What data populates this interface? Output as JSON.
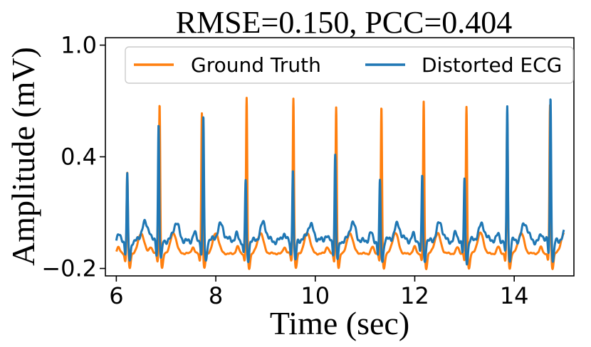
{
  "chart_data": {
    "type": "line",
    "title": "RMSE=0.150, PCC=0.404",
    "xlabel": "Time (sec)",
    "ylabel": "Amplitude (mV)",
    "xlim": [
      5.78,
      15.2
    ],
    "ylim": [
      -0.24,
      1.04
    ],
    "xticks": [
      6,
      8,
      10,
      12,
      14
    ],
    "xtick_labels": [
      "6",
      "8",
      "10",
      "12",
      "14"
    ],
    "yticks": [
      -0.2,
      0.4,
      1.0
    ],
    "ytick_labels": [
      "−0.2",
      "0.4",
      "1.0"
    ],
    "grid": false,
    "legend": {
      "placement": "top",
      "ncol": 2
    },
    "series": [
      {
        "name": "Ground Truth",
        "color": "#ff7f0e",
        "beats": [
          6.22,
          6.87,
          7.72,
          8.62,
          9.56,
          10.42,
          11.33,
          12.18,
          13.04,
          13.86,
          14.72
        ],
        "peaks": [
          0.32,
          0.69,
          0.64,
          0.72,
          0.72,
          0.67,
          0.67,
          0.7,
          0.67,
          0.62,
          0.68
        ],
        "wave": {
          "baseline": -0.12,
          "q": -0.16,
          "s": -0.2,
          "t_amp": 0.11,
          "t_offset": 0.28
        }
      },
      {
        "name": "Distorted ECG",
        "color": "#1f77b4",
        "beats": [
          6.22,
          6.85,
          7.75,
          8.6,
          9.55,
          10.4,
          11.3,
          12.15,
          13.0,
          13.86,
          14.73
        ],
        "peaks": [
          0.3,
          0.58,
          0.62,
          0.27,
          0.35,
          0.41,
          0.27,
          0.3,
          0.28,
          0.68,
          0.73
        ],
        "wave": {
          "baseline": -0.05,
          "q": -0.12,
          "s": -0.16,
          "t_amp": 0.09,
          "t_offset": 0.35
        }
      }
    ]
  }
}
